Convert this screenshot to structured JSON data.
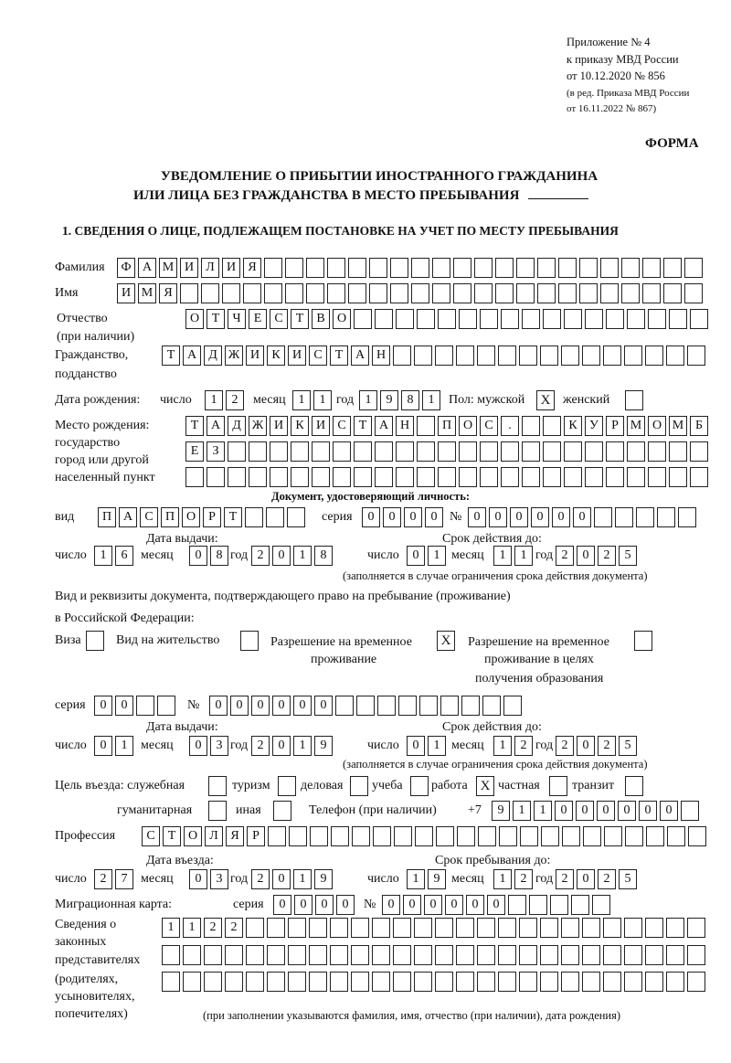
{
  "header": {
    "appendix": [
      "Приложение № 4",
      "к приказу МВД России",
      "от 10.12.2020 № 856"
    ],
    "edition": [
      "(в ред. Приказа МВД России",
      "от 16.11.2022 № 867)"
    ],
    "form_label": "ФОРМА",
    "title_line1": "УВЕДОМЛЕНИЕ О ПРИБЫТИИ ИНОСТРАННОГО ГРАЖДАНИНА",
    "title_line2": "ИЛИ ЛИЦА БЕЗ ГРАЖДАНСТВА В МЕСТО ПРЕБЫВАНИЯ",
    "section1": "1. СВЕДЕНИЯ О ЛИЦЕ, ПОДЛЕЖАЩЕМ ПОСТАНОВКЕ НА УЧЕТ ПО МЕСТУ ПРЕБЫВАНИЯ"
  },
  "labels": {
    "surname": "Фамилия",
    "name": "Имя",
    "patronymic": "Отчество",
    "patronymic_note": "(при наличии)",
    "citizenship": "Гражданство,",
    "citizenship2": "подданство",
    "birth_date": "Дата рождения:",
    "day": "число",
    "month": "месяц",
    "year": "год",
    "sex": "Пол: мужской",
    "female": "женский",
    "birth_place": "Место рождения:",
    "birth_place2": "государство",
    "birth_place3": "город или другой",
    "birth_place4": "населенный пункт",
    "id_doc": "Документ, удостоверяющий личность:",
    "kind": "вид",
    "series": "серия",
    "number": "№",
    "issue_date": "Дата выдачи:",
    "valid_until": "Срок действия до:",
    "validity_note": "(заполняется в случае ограничения срока действия документа)",
    "stay_doc1": "Вид и реквизиты документа, подтверждающего право на пребывание (проживание)",
    "stay_doc2": "в Российской Федерации:",
    "visa": "Виза",
    "residence": "Вид на жительство",
    "temp_permit1": "Разрешение на временное",
    "temp_permit2": "проживание",
    "edu_permit1": "Разрешение на временное",
    "edu_permit2": "проживание в целях",
    "edu_permit3": "получения образования",
    "purpose": "Цель въезда: служебная",
    "tourism": "туризм",
    "business": "деловая",
    "study": "учеба",
    "work": "работа",
    "private": "частная",
    "transit": "транзит",
    "humanitarian": "гуманитарная",
    "other": "иная",
    "phone": "Телефон (при наличии)",
    "phone_prefix": "+7",
    "profession": "Профессия",
    "entry_date": "Дата въезда:",
    "stay_until": "Срок пребывания до:",
    "migration_card": "Миграционная карта:",
    "reps1": "Сведения о",
    "reps2": "законных",
    "reps3": "представителях",
    "reps4": "(родителях,",
    "reps5": "усыновителях,",
    "reps6": "попечителях)",
    "reps_note": "(при заполнении указываются фамилия, имя, отчество (при наличии), дата рождения)"
  },
  "fields": {
    "surname": [
      "Ф",
      "А",
      "М",
      "И",
      "Л",
      "И",
      "Я",
      "",
      "",
      "",
      "",
      "",
      "",
      "",
      "",
      "",
      "",
      "",
      "",
      "",
      "",
      "",
      "",
      "",
      "",
      "",
      "",
      ""
    ],
    "name": [
      "И",
      "М",
      "Я",
      "",
      "",
      "",
      "",
      "",
      "",
      "",
      "",
      "",
      "",
      "",
      "",
      "",
      "",
      "",
      "",
      "",
      "",
      "",
      "",
      "",
      "",
      "",
      "",
      ""
    ],
    "patronymic": [
      "О",
      "Т",
      "Ч",
      "Е",
      "С",
      "Т",
      "В",
      "О",
      "",
      "",
      "",
      "",
      "",
      "",
      "",
      "",
      "",
      "",
      "",
      "",
      "",
      "",
      "",
      "",
      ""
    ],
    "citizenship": [
      "Т",
      "А",
      "Д",
      "Ж",
      "И",
      "К",
      "И",
      "С",
      "Т",
      "А",
      "Н",
      "",
      "",
      "",
      "",
      "",
      "",
      "",
      "",
      "",
      "",
      "",
      "",
      "",
      "",
      ""
    ],
    "birth_day": [
      "1",
      "2"
    ],
    "birth_month": [
      "1",
      "1"
    ],
    "birth_year": [
      "1",
      "9",
      "8",
      "1"
    ],
    "sex_male": "X",
    "sex_female": "",
    "birth_place1": [
      "Т",
      "А",
      "Д",
      "Ж",
      "И",
      "К",
      "И",
      "С",
      "Т",
      "А",
      "Н",
      "",
      "П",
      "О",
      "С",
      ".",
      "",
      "",
      "К",
      "У",
      "Р",
      "М",
      "О",
      "М",
      "Б"
    ],
    "birth_place2": [
      "Е",
      "З",
      "",
      "",
      "",
      "",
      "",
      "",
      "",
      "",
      "",
      "",
      "",
      "",
      "",
      "",
      "",
      "",
      "",
      "",
      "",
      "",
      "",
      "",
      ""
    ],
    "birth_place3": [
      "",
      "",
      "",
      "",
      "",
      "",
      "",
      "",
      "",
      "",
      "",
      "",
      "",
      "",
      "",
      "",
      "",
      "",
      "",
      "",
      "",
      "",
      "",
      "",
      ""
    ],
    "doc_kind": [
      "П",
      "А",
      "С",
      "П",
      "О",
      "Р",
      "Т",
      "",
      "",
      ""
    ],
    "doc_series": [
      "0",
      "0",
      "0",
      "0"
    ],
    "doc_number": [
      "0",
      "0",
      "0",
      "0",
      "0",
      "0",
      "",
      "",
      "",
      "",
      ""
    ],
    "doc_issue_day": [
      "1",
      "6"
    ],
    "doc_issue_month": [
      "0",
      "8"
    ],
    "doc_issue_year": [
      "2",
      "0",
      "1",
      "8"
    ],
    "doc_valid_day": [
      "0",
      "1"
    ],
    "doc_valid_month": [
      "1",
      "1"
    ],
    "doc_valid_year": [
      "2",
      "0",
      "2",
      "5"
    ],
    "stay_visa": "",
    "stay_residence": "",
    "stay_temp_permit": "X",
    "stay_edu_permit": "",
    "stay_series": [
      "0",
      "0",
      "",
      ""
    ],
    "stay_number": [
      "0",
      "0",
      "0",
      "0",
      "0",
      "0",
      "",
      "",
      "",
      "",
      "",
      "",
      "",
      "",
      ""
    ],
    "stay_issue_day": [
      "0",
      "1"
    ],
    "stay_issue_month": [
      "0",
      "3"
    ],
    "stay_issue_year": [
      "2",
      "0",
      "1",
      "9"
    ],
    "stay_valid_day": [
      "0",
      "1"
    ],
    "stay_valid_month": [
      "1",
      "2"
    ],
    "stay_valid_year": [
      "2",
      "0",
      "2",
      "5"
    ],
    "purpose_official": "",
    "purpose_tourism": "",
    "purpose_business": "",
    "purpose_study": "",
    "purpose_work": "X",
    "purpose_private": "",
    "purpose_transit": "",
    "purpose_humanitarian": "",
    "purpose_other": "",
    "phone": [
      "9",
      "1",
      "1",
      "0",
      "0",
      "0",
      "0",
      "0",
      "0",
      ""
    ],
    "profession": [
      "С",
      "Т",
      "О",
      "Л",
      "Я",
      "Р",
      "",
      "",
      "",
      "",
      "",
      "",
      "",
      "",
      "",
      "",
      "",
      "",
      "",
      "",
      "",
      "",
      "",
      "",
      "",
      "",
      ""
    ],
    "entry_day": [
      "2",
      "7"
    ],
    "entry_month": [
      "0",
      "3"
    ],
    "entry_year": [
      "2",
      "0",
      "1",
      "9"
    ],
    "stay_until_day": [
      "1",
      "9"
    ],
    "stay_until_month": [
      "1",
      "2"
    ],
    "stay_until_year": [
      "2",
      "0",
      "2",
      "5"
    ],
    "mc_series": [
      "0",
      "0",
      "0",
      "0"
    ],
    "mc_number": [
      "0",
      "0",
      "0",
      "0",
      "0",
      "0",
      "",
      "",
      "",
      "",
      ""
    ],
    "reps1": [
      "1",
      "1",
      "2",
      "2",
      "",
      "",
      "",
      "",
      "",
      "",
      "",
      "",
      "",
      "",
      "",
      "",
      "",
      "",
      "",
      "",
      "",
      "",
      "",
      "",
      "",
      ""
    ],
    "reps2": [
      "",
      "",
      "",
      "",
      "",
      "",
      "",
      "",
      "",
      "",
      "",
      "",
      "",
      "",
      "",
      "",
      "",
      "",
      "",
      "",
      "",
      "",
      "",
      "",
      "",
      ""
    ],
    "reps3": [
      "",
      "",
      "",
      "",
      "",
      "",
      "",
      "",
      "",
      "",
      "",
      "",
      "",
      "",
      "",
      "",
      "",
      "",
      "",
      "",
      "",
      "",
      "",
      "",
      "",
      ""
    ]
  }
}
